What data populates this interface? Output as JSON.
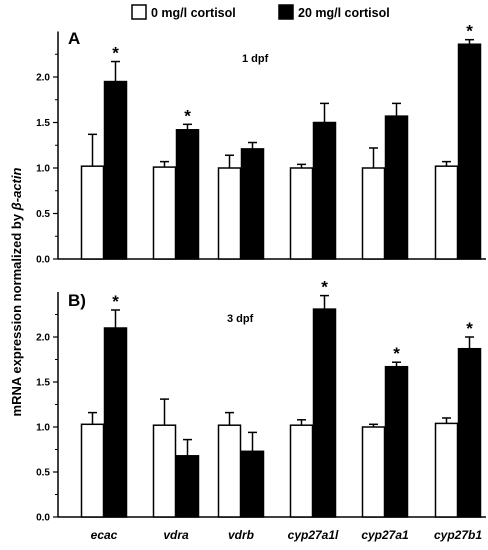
{
  "legend": {
    "items": [
      {
        "label": "0 mg/l cortisol",
        "color": "#ffffff"
      },
      {
        "label": "20 mg/l cortisol",
        "color": "#000000"
      }
    ]
  },
  "y_axis": {
    "label_prefix": "mRNA expression normalized by ",
    "label_gene": "β-actin"
  },
  "categories": [
    "ecac",
    "vdra",
    "vdrb",
    "cyp27a1l",
    "cyp27a1",
    "cyp27b1"
  ],
  "chart_data": [
    {
      "type": "bar",
      "panel_letter": "A",
      "subtitle": "1 dpf",
      "categories": [
        "ecac",
        "vdra",
        "vdrb",
        "cyp27a1l",
        "cyp27a1",
        "cyp27b1"
      ],
      "ylim": [
        0,
        2.5
      ],
      "yticks": [
        "0.0",
        "0.5",
        "1.0",
        "1.5",
        "2.0"
      ],
      "series": [
        {
          "name": "0 mg/l cortisol",
          "color": "#ffffff",
          "values": [
            1.02,
            1.01,
            1.0,
            1.0,
            1.0,
            1.02
          ],
          "errors": [
            0.35,
            0.06,
            0.14,
            0.04,
            0.22,
            0.05
          ]
        },
        {
          "name": "20 mg/l cortisol",
          "color": "#000000",
          "values": [
            1.95,
            1.42,
            1.21,
            1.5,
            1.57,
            2.36
          ],
          "errors": [
            0.22,
            0.06,
            0.07,
            0.21,
            0.14,
            0.05
          ]
        }
      ],
      "significant": [
        false,
        false,
        false,
        false,
        false,
        false,
        true,
        true,
        false,
        false,
        false,
        true
      ],
      "significance_mark": "*"
    },
    {
      "type": "bar",
      "panel_letter": "B)",
      "subtitle": "3 dpf",
      "categories": [
        "ecac",
        "vdra",
        "vdrb",
        "cyp27a1l",
        "cyp27a1",
        "cyp27b1"
      ],
      "ylim": [
        0,
        2.5
      ],
      "yticks": [
        "0.0",
        "0.5",
        "1.0",
        "1.5",
        "2.0"
      ],
      "series": [
        {
          "name": "0 mg/l cortisol",
          "color": "#ffffff",
          "values": [
            1.03,
            1.02,
            1.02,
            1.02,
            1.0,
            1.04
          ],
          "errors": [
            0.13,
            0.29,
            0.14,
            0.06,
            0.03,
            0.06
          ]
        },
        {
          "name": "20 mg/l cortisol",
          "color": "#000000",
          "values": [
            2.1,
            0.68,
            0.73,
            2.31,
            1.67,
            1.87
          ],
          "errors": [
            0.2,
            0.18,
            0.21,
            0.15,
            0.05,
            0.13
          ]
        }
      ],
      "significant": [
        false,
        false,
        false,
        false,
        false,
        false,
        true,
        false,
        false,
        true,
        true,
        true
      ],
      "significance_mark": "*"
    }
  ]
}
